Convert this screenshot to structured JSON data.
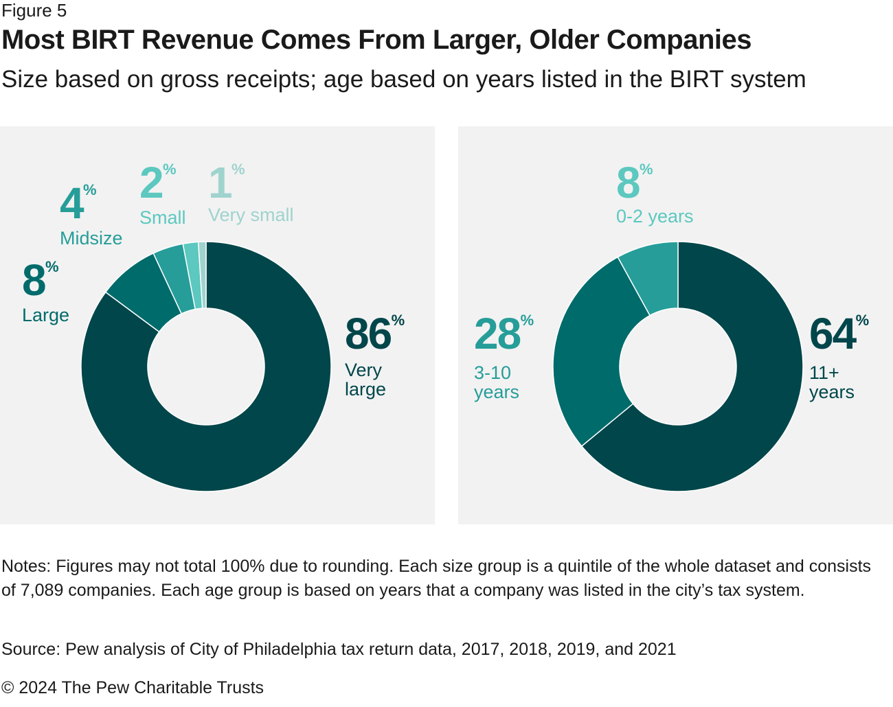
{
  "figure_label": "Figure 5",
  "colors": {
    "darkest": "#00464a",
    "dark": "#006b6b",
    "medium": "#269d99",
    "light": "#5cc8bf",
    "lightest": "#9fd3ce",
    "panel_bg": "#f2f2f2",
    "text": "#1a1a1a"
  },
  "chart_data": [
    {
      "type": "pie",
      "variant": "donut",
      "title": "Most BIRT Revenue Comes From Larger, Older Companies",
      "subtitle": "Size based on gross receipts; age based on years listed in the BIRT system",
      "dimension": "size",
      "unit": "%",
      "slices": [
        {
          "label": "Very large",
          "value": 86,
          "color": "#00464a"
        },
        {
          "label": "Large",
          "value": 8,
          "color": "#006b6b"
        },
        {
          "label": "Midsize",
          "value": 4,
          "color": "#269d99"
        },
        {
          "label": "Small",
          "value": 2,
          "color": "#5cc8bf"
        },
        {
          "label": "Very small",
          "value": 1,
          "color": "#9fd3ce"
        }
      ]
    },
    {
      "type": "pie",
      "variant": "donut",
      "dimension": "age",
      "unit": "%",
      "slices": [
        {
          "label": "11+ years",
          "value": 64,
          "color": "#00464a"
        },
        {
          "label": "3-10 years",
          "value": 28,
          "color": "#006b6b"
        },
        {
          "label": "0-2 years",
          "value": 8,
          "color": "#269d99"
        }
      ]
    }
  ],
  "left_labels": {
    "very_large": {
      "value": "86",
      "name_1": "Very",
      "name_2": "large"
    },
    "large": {
      "value": "8",
      "name": "Large"
    },
    "midsize": {
      "value": "4",
      "name": "Midsize"
    },
    "small": {
      "value": "2",
      "name": "Small"
    },
    "very_small": {
      "value": "1",
      "name": "Very small"
    }
  },
  "right_labels": {
    "eleven_plus": {
      "value": "64",
      "name_1": "11+",
      "name_2": "years"
    },
    "three_ten": {
      "value": "28",
      "name_1": "3-10",
      "name_2": "years"
    },
    "zero_two": {
      "value": "8",
      "name": "0-2 years"
    }
  },
  "percent_sign": "%",
  "notes": "Notes: Figures may not total 100% due to rounding. Each size group is a quintile of the whole dataset and consists of 7,089 companies. Each age group is based on years that a company was listed in the city’s tax system.",
  "source": "Source: Pew analysis of City of Philadelphia tax return data, 2017, 2018, 2019, and 2021",
  "copyright": "© 2024 The Pew Charitable Trusts"
}
